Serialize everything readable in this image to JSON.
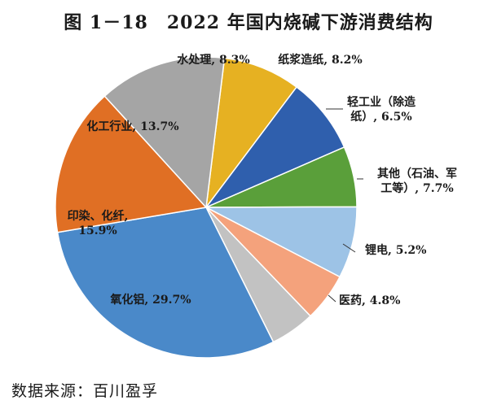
{
  "chart_data": {
    "type": "pie",
    "title": "图 1－18　2022 年国内烧碱下游消费结构",
    "slices": [
      {
        "label": "水处理",
        "value": 8.3,
        "value_text": "8.3%",
        "color": "#e6b122"
      },
      {
        "label": "纸浆造纸",
        "value": 8.2,
        "value_text": "8.2%",
        "color": "#2f5fad"
      },
      {
        "label": "轻工业（除造纸）",
        "value": 6.5,
        "value_text": "6.5%",
        "color": "#5a9f3a"
      },
      {
        "label": "其他（石油、军工等）",
        "value": 7.7,
        "value_text": "7.7%",
        "color": "#9dc3e6"
      },
      {
        "label": "锂电",
        "value": 5.2,
        "value_text": "5.2%",
        "color": "#f4a27c"
      },
      {
        "label": "医药",
        "value": 4.8,
        "value_text": "4.8%",
        "color": "#c2c2c2"
      },
      {
        "label": "氧化铝",
        "value": 29.7,
        "value_text": "29.7%",
        "color": "#4a89c9"
      },
      {
        "label": "印染、化纤",
        "value": 15.9,
        "value_text": "15.9%",
        "color": "#e06f24"
      },
      {
        "label": "化工行业",
        "value": 13.7,
        "value_text": "13.7%",
        "color": "#a5a5a5"
      }
    ],
    "labels": [
      {
        "lines": [
          "水处理, 8.3%"
        ]
      },
      {
        "lines": [
          "纸浆造纸, 8.2%"
        ]
      },
      {
        "lines": [
          "轻工业（除造",
          "纸）, 6.5%"
        ]
      },
      {
        "lines": [
          "其他（石油、军",
          "工等）, 7.7%"
        ]
      },
      {
        "lines": [
          "锂电, 5.2%"
        ]
      },
      {
        "lines": [
          "医药, 4.8%"
        ]
      },
      {
        "lines": [
          "氧化铝, 29.7%"
        ]
      },
      {
        "lines": [
          "印染、化纤,",
          "15.9%"
        ]
      },
      {
        "lines": [
          "化工行业, 13.7%"
        ]
      }
    ]
  },
  "source_note": "数据来源：百川盈孚"
}
